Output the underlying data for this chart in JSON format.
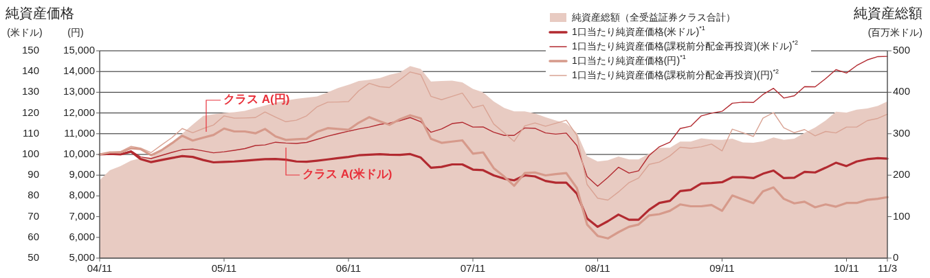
{
  "chart_data": {
    "type": "line",
    "title": "純資産価格",
    "subtitle": "純資産総額",
    "ylabel": "(米ドル)",
    "y2label": "(円)",
    "y3label": "(百万米ドル)",
    "x": [
      "2004-11",
      "2004-12",
      "2005-01",
      "2005-02",
      "2005-03",
      "2005-04",
      "2005-05",
      "2005-06",
      "2005-07",
      "2005-08",
      "2005-09",
      "2005-10",
      "2005-11",
      "2005-12",
      "2006-01",
      "2006-02",
      "2006-03",
      "2006-04",
      "2006-05",
      "2006-06",
      "2006-07",
      "2006-08",
      "2006-09",
      "2006-10",
      "2006-11",
      "2006-12",
      "2007-01",
      "2007-02",
      "2007-03",
      "2007-04",
      "2007-05",
      "2007-06",
      "2007-07",
      "2007-08",
      "2007-09",
      "2007-10",
      "2007-11",
      "2007-12",
      "2008-01",
      "2008-02",
      "2008-03",
      "2008-04",
      "2008-05",
      "2008-06",
      "2008-07",
      "2008-08",
      "2008-09",
      "2008-10",
      "2008-11",
      "2008-12",
      "2009-01",
      "2009-02",
      "2009-03",
      "2009-04",
      "2009-05",
      "2009-06",
      "2009-07",
      "2009-08",
      "2009-09",
      "2009-10",
      "2009-11",
      "2009-12",
      "2010-01",
      "2010-02",
      "2010-03",
      "2010-04",
      "2010-05",
      "2010-06",
      "2010-07",
      "2010-08",
      "2010-09",
      "2010-10",
      "2010-11",
      "2010-12",
      "2011-01",
      "2011-02",
      "2011-03"
    ],
    "xlim": [
      "2004-11",
      "2011-03"
    ],
    "xticks": [
      {
        "value": "2004-11",
        "label": "04/11"
      },
      {
        "value": "2005-11",
        "label": "05/11"
      },
      {
        "value": "2006-11",
        "label": "06/11"
      },
      {
        "value": "2007-11",
        "label": "07/11"
      },
      {
        "value": "2008-11",
        "label": "08/11"
      },
      {
        "value": "2009-11",
        "label": "09/11"
      },
      {
        "value": "2010-11",
        "label": "10/11"
      },
      {
        "value": "2011-03",
        "label": "11/3"
      }
    ],
    "ylim": [
      50,
      150
    ],
    "yticks": [
      50,
      60,
      70,
      80,
      90,
      100,
      110,
      120,
      130,
      140,
      150
    ],
    "y2lim": [
      5000,
      15000
    ],
    "y2ticks": [
      {
        "value": 5000,
        "label": "5,000"
      },
      {
        "value": 6000,
        "label": "6,000"
      },
      {
        "value": 7000,
        "label": "7,000"
      },
      {
        "value": 8000,
        "label": "8,000"
      },
      {
        "value": 9000,
        "label": "9,000"
      },
      {
        "value": 10000,
        "label": "10,000"
      },
      {
        "value": 11000,
        "label": "11,000"
      },
      {
        "value": 12000,
        "label": "12,000"
      },
      {
        "value": 13000,
        "label": "13,000"
      },
      {
        "value": 14000,
        "label": "14,000"
      },
      {
        "value": 15000,
        "label": "15,000"
      }
    ],
    "y3lim": [
      0,
      500
    ],
    "y3ticks": [
      0,
      100,
      200,
      300,
      400,
      500
    ],
    "grid": "y",
    "legend": "top right",
    "series": [
      {
        "name": "純資産総額（全受益証券クラス合計）",
        "type": "area",
        "axis": "y3",
        "color": "#e8cbc2",
        "values": [
          188,
          212,
          222,
          235,
          241,
          243,
          262,
          280,
          300,
          322,
          343,
          347,
          350,
          352,
          355,
          362,
          368,
          375,
          380,
          384,
          387,
          390,
          400,
          410,
          418,
          427,
          430,
          434,
          442,
          448,
          463,
          456,
          426,
          427,
          428,
          424,
          408,
          400,
          378,
          362,
          354,
          354,
          349,
          340,
          332,
          325,
          302,
          246,
          233,
          236,
          245,
          238,
          238,
          252,
          266,
          266,
          281,
          281,
          289,
          286,
          285,
          288,
          279,
          278,
          282,
          291,
          285,
          288,
          302,
          315,
          332,
          353,
          351,
          358,
          361,
          367,
          378
        ]
      },
      {
        "name": "1口当たり純資産価格(米ドル)$^{*1}$",
        "axis": "y",
        "color": "#b22a30",
        "values": [
          100,
          100.3,
          100,
          101.3,
          97.8,
          96.3,
          97.3,
          98.3,
          99.2,
          98.8,
          97.3,
          96.2,
          96.4,
          96.6,
          97,
          97.4,
          97.7,
          97.8,
          97.5,
          96.6,
          96.5,
          97,
          97.6,
          98.2,
          98.8,
          99.6,
          99.9,
          100.1,
          99.9,
          99.8,
          100.2,
          98.5,
          93.6,
          94,
          95.2,
          95.2,
          92.7,
          92.4,
          89.9,
          88.3,
          87.5,
          89.9,
          89.4,
          87.2,
          86.4,
          86.4,
          81.1,
          69.1,
          65.1,
          67.8,
          71,
          68.5,
          68.5,
          73.3,
          76.6,
          77.6,
          82.3,
          82.9,
          86,
          86.2,
          86.6,
          89,
          89,
          88.6,
          90.7,
          92.2,
          88.6,
          88.8,
          91.6,
          91.3,
          93.6,
          96,
          94.4,
          96.6,
          97.7,
          98.2,
          98
        ]
      },
      {
        "name": "1口当たり純資産価格(課税前分配金再投資)(米ドル)$^{*2}$",
        "axis": "y",
        "color": "#b22a30",
        "values": [
          100,
          100.3,
          100.2,
          101.8,
          98.8,
          98,
          99.5,
          101,
          102.3,
          102.6,
          101.7,
          100.8,
          101.3,
          102,
          102.8,
          104.3,
          104.6,
          105.9,
          105.5,
          105.3,
          105.8,
          107.3,
          108.8,
          110,
          111.2,
          112.3,
          113.2,
          114.5,
          115.1,
          116.3,
          117.8,
          115.8,
          110.7,
          112.3,
          114.9,
          115.5,
          113.2,
          113.3,
          110.7,
          109.2,
          109.2,
          112.8,
          112.6,
          110.4,
          109.8,
          110.3,
          104.3,
          89.3,
          84.7,
          88.9,
          93.8,
          91,
          92.1,
          99.5,
          103.7,
          105.9,
          112.5,
          113.6,
          118.6,
          119.9,
          120.8,
          124.7,
          125.2,
          125.1,
          128.9,
          131.9,
          127.2,
          128.3,
          132.7,
          132.6,
          136.6,
          140.9,
          139.3,
          142.9,
          145.6,
          147.2,
          147.3
        ]
      },
      {
        "name": "1口当たり純資産価格(円)$^{*1}$",
        "axis": "y2",
        "color": "#d69a8b",
        "values": [
          10000,
          10100,
          10100,
          10300,
          10260,
          9960,
          10200,
          10540,
          10900,
          10670,
          10810,
          10940,
          11250,
          11110,
          11110,
          11020,
          11230,
          10870,
          10700,
          10730,
          10760,
          11090,
          11270,
          11230,
          11190,
          11530,
          11800,
          11600,
          11430,
          11700,
          11890,
          11740,
          10750,
          10560,
          10620,
          10680,
          10040,
          10100,
          9340,
          8930,
          8490,
          9100,
          9130,
          8990,
          9050,
          9100,
          8380,
          6620,
          6070,
          5950,
          6250,
          6510,
          6620,
          7060,
          7120,
          7280,
          7590,
          7500,
          7500,
          7560,
          7280,
          8020,
          7830,
          7650,
          8220,
          8410,
          7860,
          7640,
          7720,
          7450,
          7590,
          7480,
          7660,
          7660,
          7810,
          7860,
          7940
        ]
      },
      {
        "name": "1口当たり純資産価格(課税前分配金再投資)(円)$^{*2}$",
        "axis": "y2",
        "color": "#d9a394",
        "values": [
          10000,
          10100,
          10140,
          10390,
          10310,
          10090,
          10450,
          10810,
          11250,
          11050,
          11250,
          11420,
          11860,
          11750,
          11760,
          11780,
          12050,
          11800,
          11580,
          11650,
          11860,
          12300,
          12520,
          12530,
          12550,
          13070,
          13430,
          13270,
          13230,
          13600,
          13980,
          13850,
          12800,
          12640,
          12800,
          12960,
          12250,
          12380,
          11470,
          11040,
          10630,
          11380,
          11520,
          11360,
          11500,
          11650,
          10920,
          8550,
          7890,
          7800,
          8190,
          8640,
          8860,
          9520,
          9630,
          9930,
          10350,
          10300,
          10370,
          10500,
          10170,
          11220,
          11050,
          10870,
          11750,
          12020,
          11290,
          11050,
          11200,
          10900,
          11110,
          11040,
          11320,
          11320,
          11630,
          11740,
          11940
        ]
      }
    ],
    "annotations": [
      "クラス A(円)",
      "クラス A(米ドル)"
    ]
  }
}
